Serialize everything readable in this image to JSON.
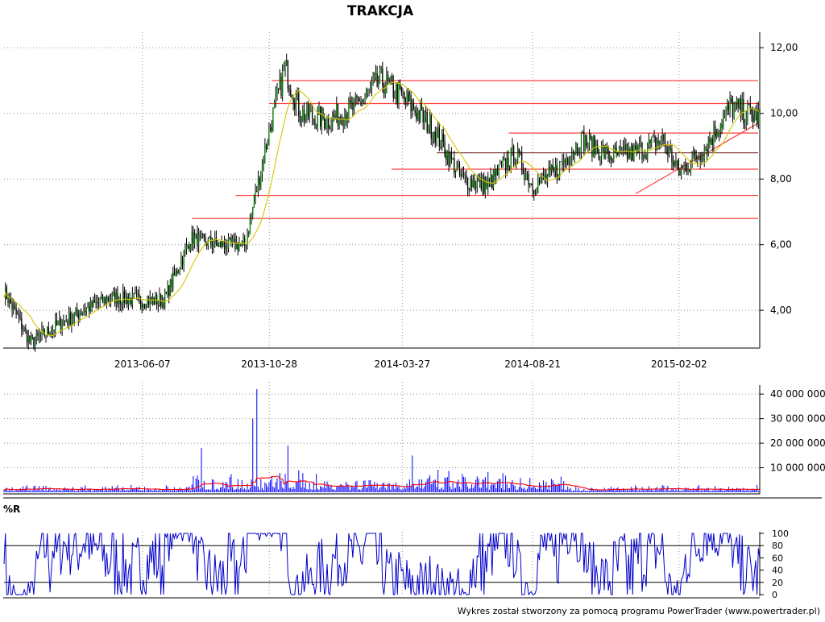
{
  "title": "TRAKCJA",
  "footer": "Wykres został stworzony za pomocą programu PowerTrader (www.powertrader.pl)",
  "colors": {
    "candle_up": "#008000",
    "candle_down": "#000000",
    "moving_average": "#d4c800",
    "support_lines": "#ff4040",
    "volume_bars": "#0000ff",
    "volume_average": "#ff0000",
    "williams_r": "#0000cc",
    "grid": "#909090"
  },
  "chart_data": [
    {
      "type": "line",
      "panel": "price",
      "title": "TRAKCJA",
      "x_tick_labels": [
        "2013-06-07",
        "2013-10-28",
        "2014-03-27",
        "2014-08-21",
        "2015-02-02"
      ],
      "y_tick_labels": [
        "4,00",
        "6,00",
        "8,00",
        "10,00",
        "12,00"
      ],
      "ylim": [
        2.9,
        12.3
      ],
      "grid": true,
      "series": [
        {
          "kind": "price",
          "x": [
            "2013-01-02",
            "2013-02-01",
            "2013-03-01",
            "2013-04-01",
            "2013-05-02",
            "2013-06-07",
            "2013-07-01",
            "2013-08-01",
            "2013-09-02",
            "2013-10-01",
            "2013-10-28",
            "2013-11-15",
            "2013-12-02",
            "2014-01-02",
            "2014-02-03",
            "2014-03-03",
            "2014-03-27",
            "2014-05-02",
            "2014-06-02",
            "2014-07-01",
            "2014-08-01",
            "2014-08-21",
            "2014-09-15",
            "2014-10-15",
            "2014-11-17",
            "2014-12-15",
            "2015-01-15",
            "2015-02-02",
            "2015-03-02",
            "2015-04-01",
            "2015-04-30"
          ],
          "values": [
            4.6,
            3.0,
            3.5,
            4.0,
            4.4,
            4.3,
            4.3,
            6.2,
            6.0,
            6.0,
            9.5,
            11.4,
            10.0,
            9.8,
            10.2,
            11.0,
            10.5,
            9.5,
            8.0,
            7.8,
            8.8,
            7.8,
            8.2,
            9.2,
            8.7,
            8.8,
            9.2,
            8.2,
            8.9,
            10.2,
            9.9
          ]
        }
      ],
      "moving_average_note": "",
      "horizontal_levels": [
        6.8,
        7.5,
        8.3,
        8.8,
        9.4,
        10.3,
        11.0
      ],
      "trendline": {
        "from": {
          "x": "2014-12-15",
          "y": 7.55
        },
        "to": {
          "x": "2015-05-04",
          "y": 9.7
        }
      }
    },
    {
      "type": "bar",
      "panel": "volume",
      "y_tick_labels": [
        "10 000 000",
        "20 000 000",
        "30 000 000",
        "40 000 000"
      ],
      "ylim": [
        0,
        43000000
      ],
      "peak_spikes": [
        {
          "x": "2013-08-12",
          "value": 18000000
        },
        {
          "x": "2013-10-10",
          "value": 30000000
        },
        {
          "x": "2013-10-14",
          "value": 42000000
        },
        {
          "x": "2013-11-18",
          "value": 19000000
        },
        {
          "x": "2014-04-07",
          "value": 15000000
        }
      ]
    },
    {
      "type": "line",
      "panel": "williams_r",
      "label": "%R",
      "y_tick_labels": [
        "0",
        "20",
        "40",
        "60",
        "80",
        "100"
      ],
      "ylim": [
        0,
        100
      ],
      "reference_levels": [
        20,
        80
      ]
    }
  ]
}
